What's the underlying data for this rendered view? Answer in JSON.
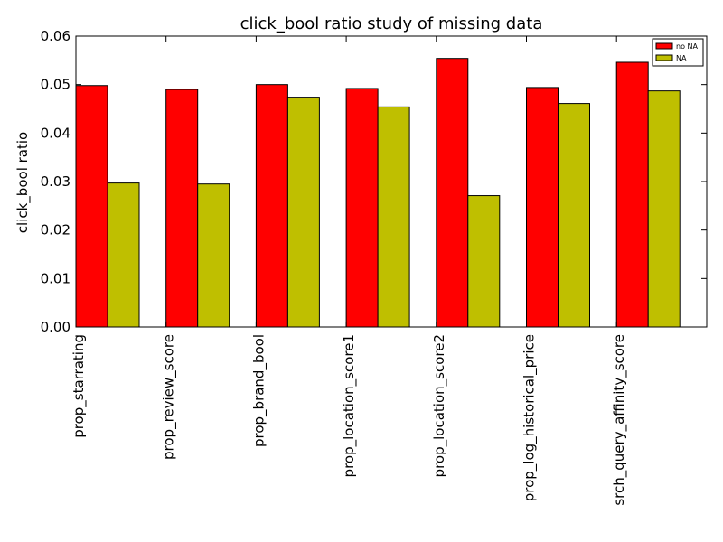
{
  "chart_data": {
    "type": "bar",
    "title": "click_bool ratio study of missing data",
    "xlabel": "",
    "ylabel": "click_bool ratio",
    "ylim": [
      0,
      0.06
    ],
    "yticks": [
      "0.00",
      "0.01",
      "0.02",
      "0.03",
      "0.04",
      "0.05",
      "0.06"
    ],
    "categories": [
      "prop_starrating",
      "prop_review_score",
      "prop_brand_bool",
      "prop_location_score1",
      "prop_location_score2",
      "prop_log_historical_price",
      "srch_query_affinity_score"
    ],
    "series": [
      {
        "name": "no NA",
        "color": "#ff0000",
        "values": [
          0.0498,
          0.049,
          0.05,
          0.0492,
          0.0554,
          0.0494,
          0.0546
        ]
      },
      {
        "name": "NA",
        "color": "#bfbf00",
        "values": [
          0.0297,
          0.0295,
          0.0474,
          0.0454,
          0.0271,
          0.0461,
          0.0487
        ]
      }
    ],
    "grid": false,
    "legend_position": "top-right"
  }
}
